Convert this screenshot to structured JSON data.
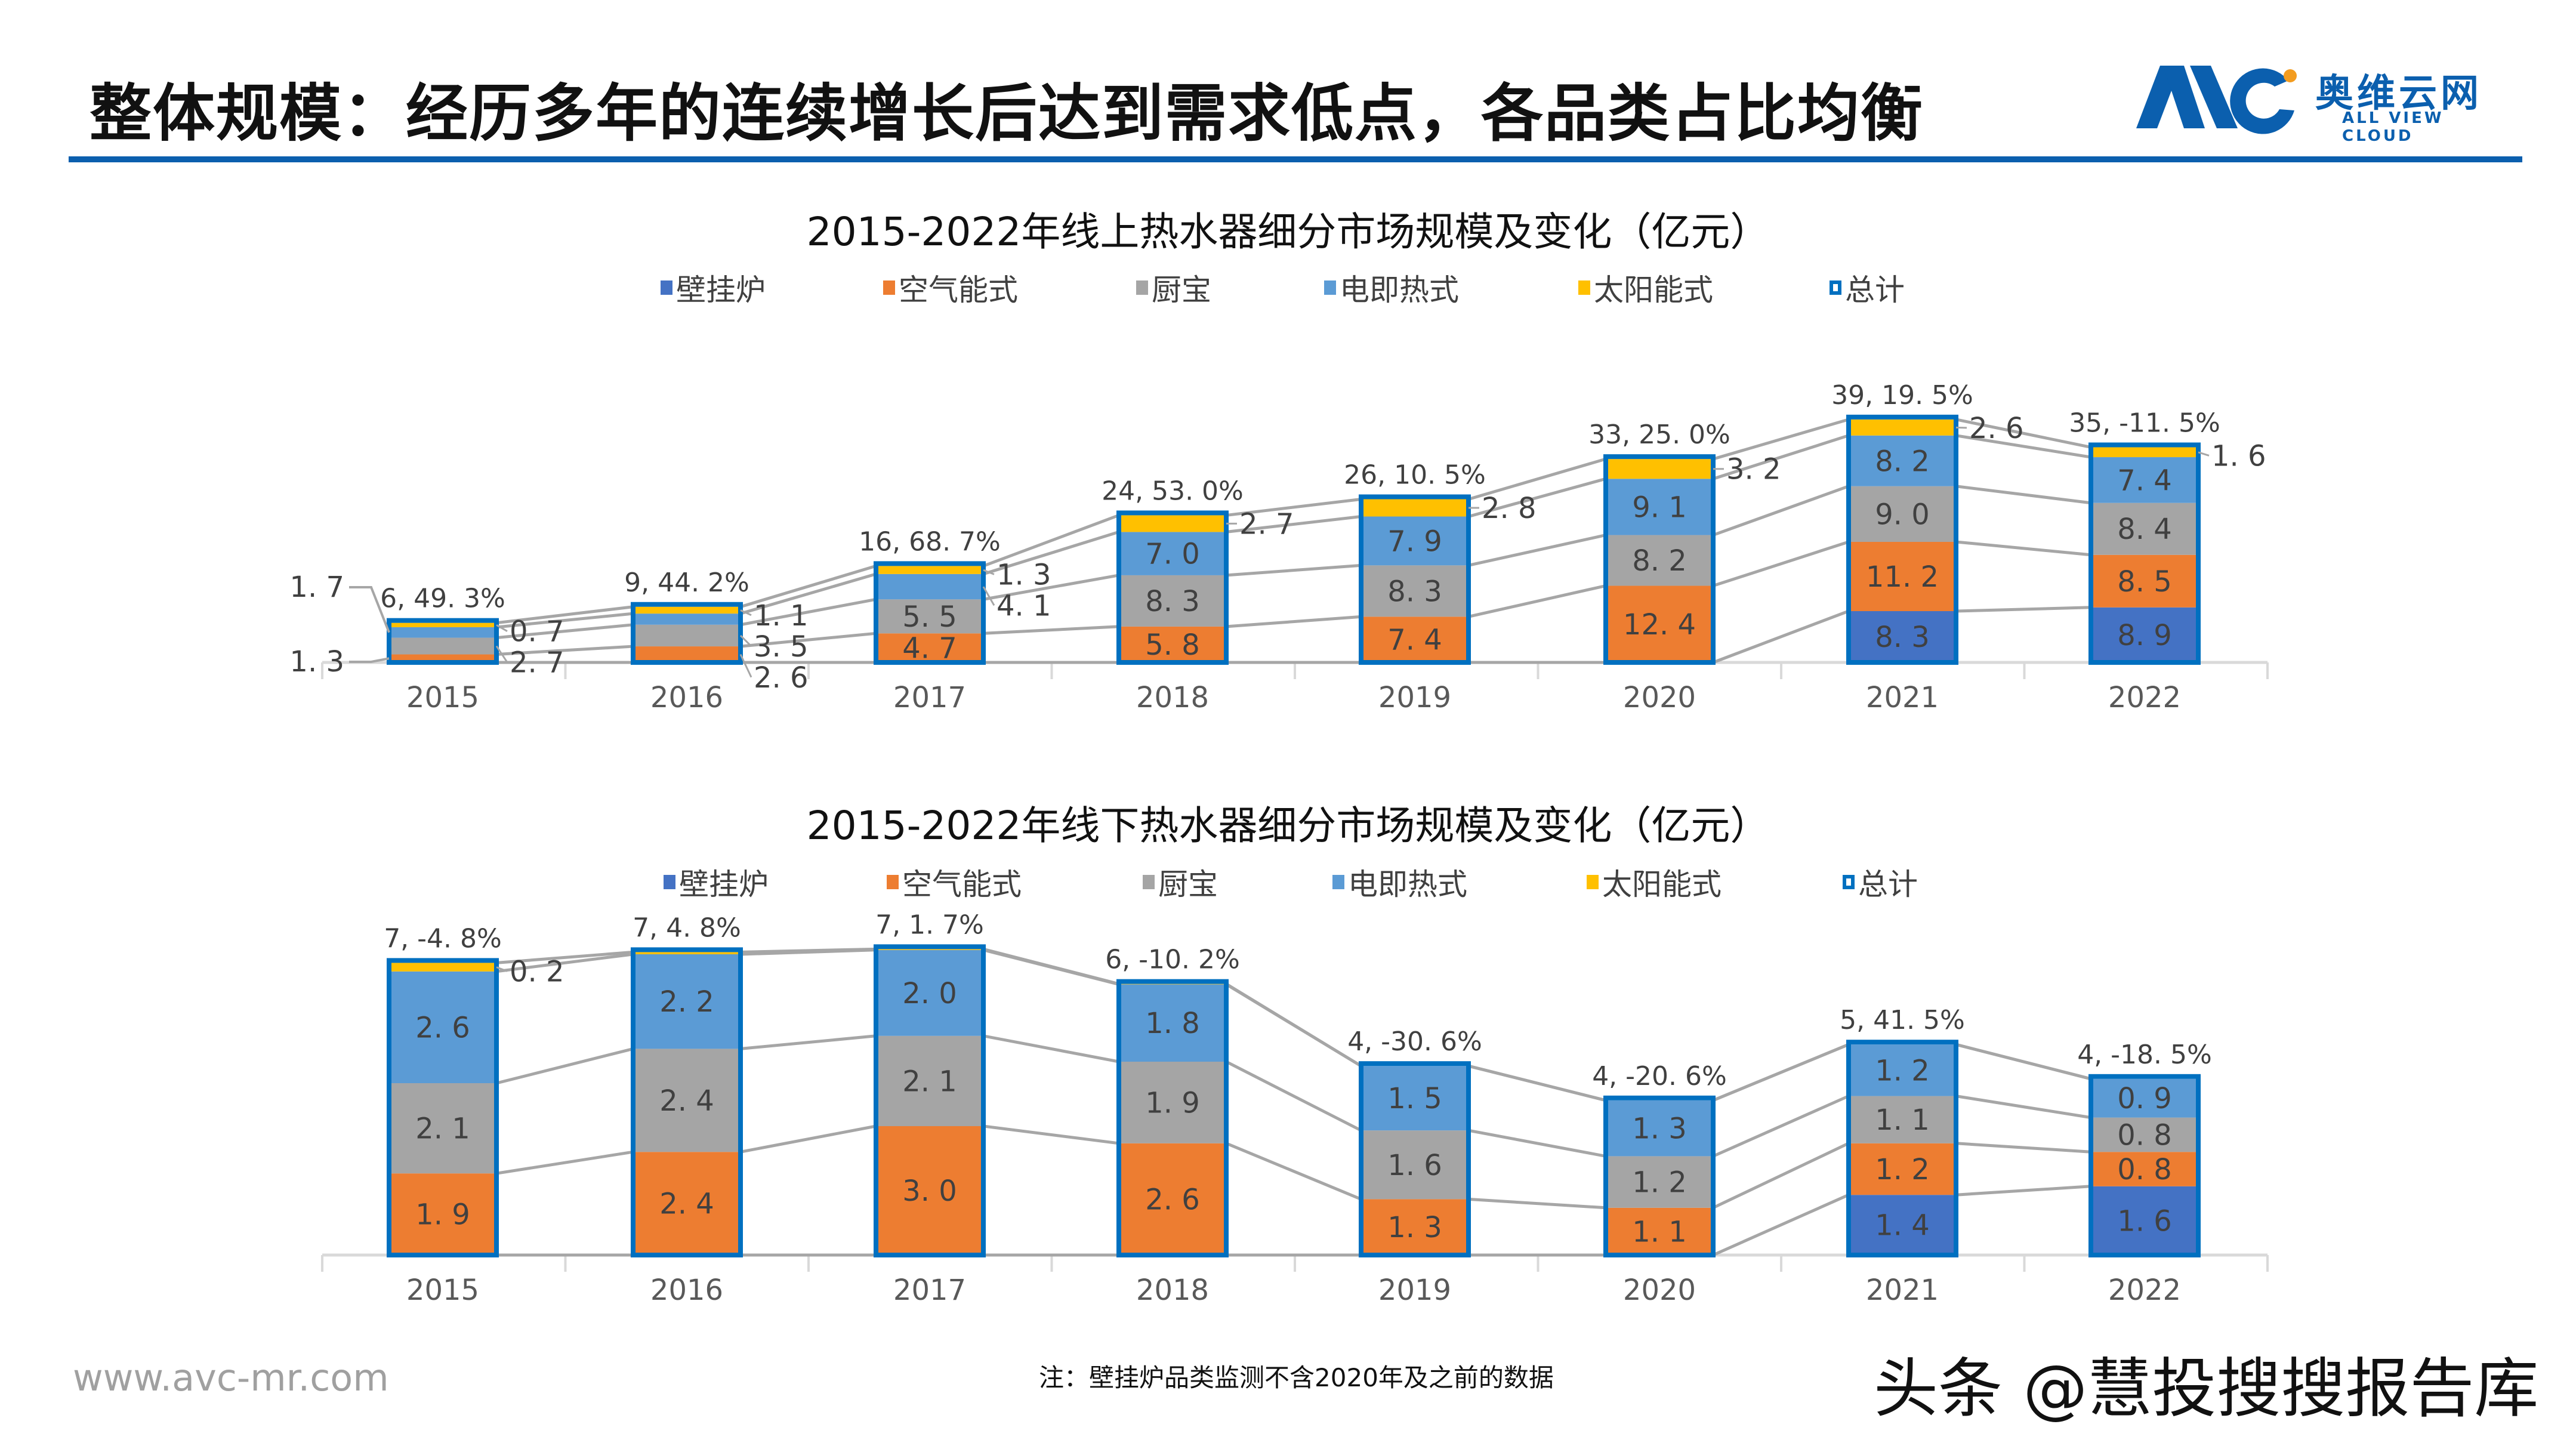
{
  "header": {
    "title": "整体规模：经历多年的连续增长后达到需求低点，各品类占比均衡",
    "logo_text_cn": "奥维云网",
    "logo_text_en": "ALL VIEW CLOUD",
    "logo_mark": "AVC",
    "brand_color": "#0b5fae",
    "logo_dot_color": "#f39c1f"
  },
  "legend": [
    "壁挂炉",
    "空气能式",
    "厨宝",
    "电即热式",
    "太阳能式",
    "总计"
  ],
  "colors": {
    "壁挂炉": "#4472c4",
    "空气能式": "#ed7d31",
    "厨宝": "#a5a5a5",
    "电即热式": "#5b9bd5",
    "太阳能式": "#ffc000",
    "总计": "#0070c0"
  },
  "chart_data": [
    {
      "type": "bar",
      "stacked": true,
      "title": "2015-2022年线上热水器细分市场规模及变化（亿元）",
      "categories": [
        "2015",
        "2016",
        "2017",
        "2018",
        "2019",
        "2020",
        "2021",
        "2022"
      ],
      "series": [
        {
          "name": "壁挂炉",
          "values": [
            0,
            0,
            0,
            0,
            0,
            0,
            8.3,
            8.9
          ],
          "labels": [
            "",
            "",
            "",
            "",
            "",
            "",
            "8. 3",
            "8. 9"
          ]
        },
        {
          "name": "空气能式",
          "values": [
            1.3,
            2.6,
            4.7,
            5.8,
            7.4,
            12.4,
            11.2,
            8.5
          ],
          "labels": [
            "1. 3",
            "2. 6",
            "4. 7",
            "5. 8",
            "7. 4",
            "12. 4",
            "11. 2",
            "8. 5"
          ]
        },
        {
          "name": "厨宝",
          "values": [
            2.7,
            3.5,
            5.5,
            8.3,
            8.3,
            8.2,
            9.0,
            8.4
          ],
          "labels": [
            "2. 7",
            "3. 5",
            "5. 5",
            "8. 3",
            "8. 3",
            "8. 2",
            "9. 0",
            "8. 4"
          ]
        },
        {
          "name": "电即热式",
          "values": [
            1.7,
            1.8,
            4.1,
            7.0,
            7.9,
            9.1,
            8.2,
            7.4
          ],
          "labels": [
            "1. 7",
            "",
            "4. 1",
            "7. 0",
            "7. 9",
            "9. 1",
            "8. 2",
            "7. 4"
          ]
        },
        {
          "name": "太阳能式",
          "values": [
            0.7,
            1.1,
            1.3,
            2.7,
            2.8,
            3.2,
            2.6,
            1.6
          ],
          "labels": [
            "0. 7",
            "1. 1",
            "1. 3",
            "2. 7",
            "2. 8",
            "3. 2",
            "2. 6",
            "1. 6"
          ]
        }
      ],
      "totals": [
        6,
        9,
        16,
        24,
        26,
        33,
        39,
        35
      ],
      "total_labels": [
        "6, 49. 3%",
        "9, 44. 2%",
        "16, 68. 7%",
        "24, 53. 0%",
        "26, 10. 5%",
        "33, 25. 0%",
        "39, 19. 5%",
        "35, -11. 5%"
      ],
      "legend_position": "top",
      "grid": false
    },
    {
      "type": "bar",
      "stacked": true,
      "title": "2015-2022年线下热水器细分市场规模及变化（亿元）",
      "categories": [
        "2015",
        "2016",
        "2017",
        "2018",
        "2019",
        "2020",
        "2021",
        "2022"
      ],
      "series": [
        {
          "name": "壁挂炉",
          "values": [
            0,
            0,
            0,
            0,
            0,
            0,
            1.4,
            1.6
          ],
          "labels": [
            "",
            "",
            "",
            "",
            "",
            "",
            "1. 4",
            "1. 6"
          ]
        },
        {
          "name": "空气能式",
          "values": [
            1.9,
            2.4,
            3.0,
            2.6,
            1.3,
            1.1,
            1.2,
            0.8
          ],
          "labels": [
            "1. 9",
            "2. 4",
            "3. 0",
            "2. 6",
            "1. 3",
            "1. 1",
            "1. 2",
            "0. 8"
          ]
        },
        {
          "name": "厨宝",
          "values": [
            2.1,
            2.4,
            2.1,
            1.9,
            1.6,
            1.2,
            1.1,
            0.8
          ],
          "labels": [
            "2. 1",
            "2. 4",
            "2. 1",
            "1. 9",
            "1. 6",
            "1. 2",
            "1. 1",
            "0. 8"
          ]
        },
        {
          "name": "电即热式",
          "values": [
            2.6,
            2.2,
            2.0,
            1.8,
            1.5,
            1.3,
            1.2,
            0.9
          ],
          "labels": [
            "2. 6",
            "2. 2",
            "2. 0",
            "1. 8",
            "1. 5",
            "1. 3",
            "1. 2",
            "0. 9"
          ]
        },
        {
          "name": "太阳能式",
          "values": [
            0.2,
            0.05,
            0.02,
            0.01,
            0,
            0,
            0,
            0
          ],
          "labels": [
            "0. 2",
            "",
            "",
            "",
            "",
            "",
            "",
            ""
          ]
        }
      ],
      "totals": [
        7,
        7,
        7,
        6,
        4,
        4,
        5,
        4
      ],
      "total_labels": [
        "7, -4. 8%",
        "7, 4. 8%",
        "7, 1. 7%",
        "6, -10. 2%",
        "4, -30. 6%",
        "4, -20. 6%",
        "5, 41. 5%",
        "4, -18. 5%"
      ],
      "legend_position": "top",
      "grid": false
    }
  ],
  "footer": {
    "url": "www.avc-mr.com",
    "note": "注：壁挂炉品类监测不含2020年及之前的数据",
    "watermark": "头条 @慧投搜搜报告库"
  }
}
